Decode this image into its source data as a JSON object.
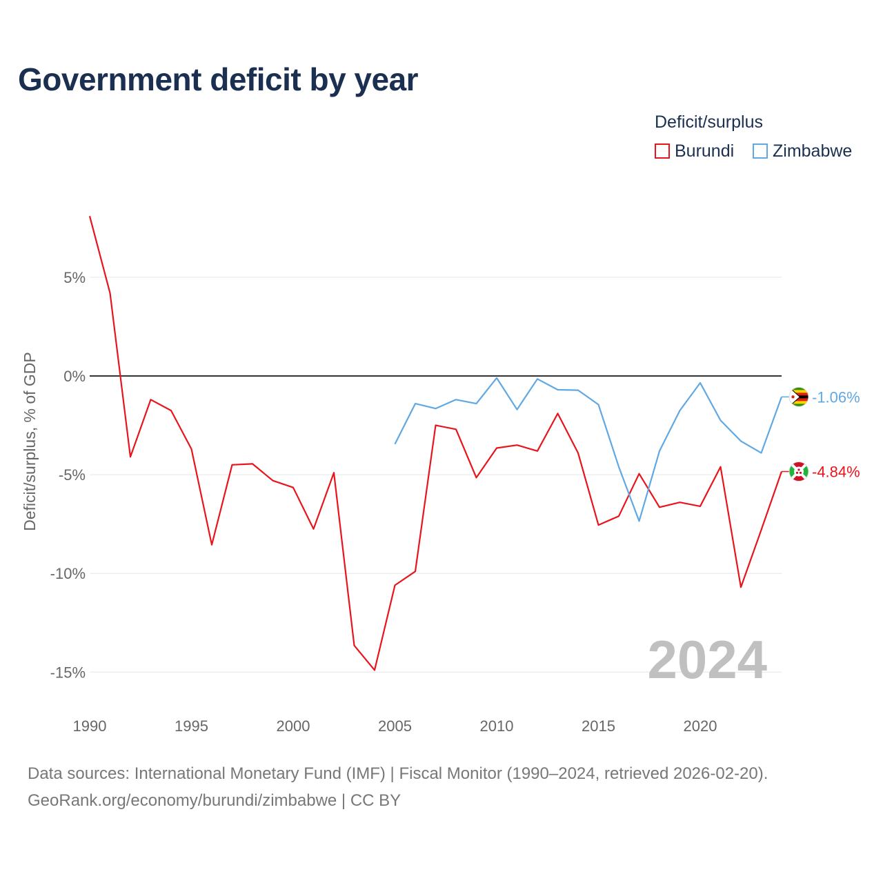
{
  "title": "Government deficit by year",
  "legend": {
    "title": "Deficit/surplus",
    "items": [
      {
        "label": "Burundi",
        "color": "#e8141c"
      },
      {
        "label": "Zimbabwe",
        "color": "#5fa8e3"
      }
    ]
  },
  "watermark_year": "2024",
  "footer": {
    "sources": "Data sources: International Monetary Fund (IMF) | Fiscal Monitor (1990–2024, retrieved 2026-02-20).",
    "credit": "GeoRank.org/economy/burundi/zimbabwe | CC BY"
  },
  "chart_data": {
    "type": "line",
    "title": "Government deficit by year",
    "xlabel": "",
    "ylabel": "Deficit/surplus, % of GDP",
    "xlim": [
      1990,
      2024
    ],
    "ylim": [
      -16.5,
      9
    ],
    "x_ticks": [
      1990,
      1995,
      2000,
      2005,
      2010,
      2015,
      2020
    ],
    "x_tick_labels": [
      "1990",
      "1995",
      "2000",
      "2005",
      "2010",
      "2015",
      "2020"
    ],
    "y_ticks": [
      5,
      0,
      -5,
      -10,
      -15
    ],
    "y_tick_labels": [
      "5%",
      "0%",
      "-5%",
      "-10%",
      "-15%"
    ],
    "grid": true,
    "legend_position": "top-right",
    "series": [
      {
        "name": "Burundi",
        "color": "#e8141c",
        "end_label": "-4.84%",
        "end_flag": "burundi-flag",
        "x": [
          1990,
          1991,
          1992,
          1993,
          1994,
          1995,
          1996,
          1997,
          1998,
          1999,
          2000,
          2001,
          2002,
          2003,
          2004,
          2005,
          2006,
          2007,
          2008,
          2009,
          2010,
          2011,
          2012,
          2013,
          2014,
          2015,
          2016,
          2017,
          2018,
          2019,
          2020,
          2021,
          2022,
          2023,
          2024
        ],
        "values": [
          8.1,
          4.2,
          -4.1,
          -1.2,
          -1.75,
          -3.7,
          -8.55,
          -4.5,
          -4.45,
          -5.3,
          -5.65,
          -7.75,
          -4.9,
          -13.65,
          -14.9,
          -10.6,
          -9.9,
          -2.5,
          -2.7,
          -5.15,
          -3.65,
          -3.5,
          -3.8,
          -1.9,
          -3.9,
          -7.55,
          -7.1,
          -4.95,
          -6.65,
          -6.4,
          -6.6,
          -4.6,
          -10.7,
          -7.8,
          -4.84
        ]
      },
      {
        "name": "Zimbabwe",
        "color": "#5fa8e3",
        "end_label": "-1.06%",
        "end_flag": "zimbabwe-flag",
        "x": [
          2005,
          2006,
          2007,
          2008,
          2009,
          2010,
          2011,
          2012,
          2013,
          2014,
          2015,
          2016,
          2017,
          2018,
          2019,
          2020,
          2021,
          2022,
          2023,
          2024
        ],
        "values": [
          -3.45,
          -1.4,
          -1.65,
          -1.2,
          -1.4,
          -0.1,
          -1.7,
          -0.15,
          -0.7,
          -0.72,
          -1.45,
          -4.6,
          -7.35,
          -3.8,
          -1.75,
          -0.35,
          -2.25,
          -3.3,
          -3.9,
          -1.06
        ]
      }
    ],
    "annotations": [
      "2024"
    ]
  }
}
